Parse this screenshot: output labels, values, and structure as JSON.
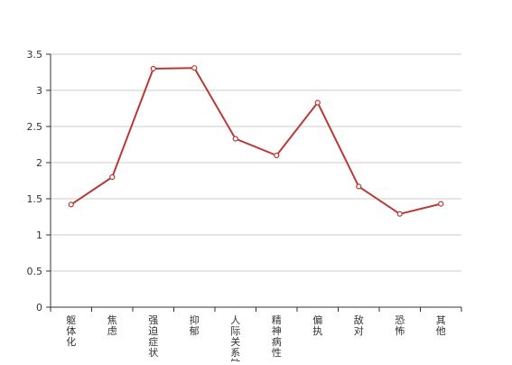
{
  "chart_data": {
    "type": "line",
    "categories": [
      "躯体化",
      "焦虑",
      "强迫症状",
      "抑郁",
      "人际关系敏感",
      "精神病性",
      "偏执",
      "敌对",
      "恐怖",
      "其他"
    ],
    "series": [
      {
        "values": [
          1.42,
          1.8,
          3.3,
          3.31,
          2.33,
          2.1,
          2.83,
          1.67,
          1.29,
          1.43
        ]
      }
    ],
    "ylim": [
      0,
      3.5
    ],
    "yticks": [
      "0",
      "0.5",
      "1",
      "1.5",
      "2",
      "2.5",
      "3",
      "3.5"
    ],
    "grid": true,
    "line_color": "#b93a35",
    "marker_fill": "#ffffff"
  }
}
